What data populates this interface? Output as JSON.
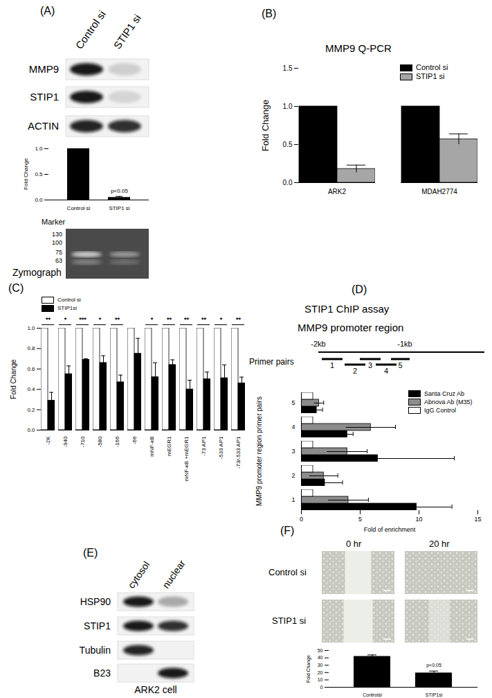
{
  "figure": {
    "A": {
      "label": "(A)",
      "blot": {
        "lanes": [
          "Control si",
          "STIP1 si"
        ],
        "rows": [
          "MMP9",
          "STIP1",
          "ACTIN"
        ]
      },
      "zymograph": {
        "title": "Zymograph",
        "marker_title": "Marker",
        "markers": [
          130,
          100,
          75,
          63
        ]
      }
    },
    "B": {
      "label": "(B)",
      "title": "MMP9 Q-PCR"
    },
    "C": {
      "label": "(C)"
    },
    "D": {
      "label": "(D)",
      "title": "STIP1 ChIP assay",
      "subtitle": "MMP9 promoter region",
      "diagram": {
        "start": "-2kb",
        "end": "-1kb",
        "primer_title": "Primer pairs"
      }
    },
    "E": {
      "label": "(E)",
      "blot": {
        "lanes": [
          "cytosol",
          "nuclear"
        ],
        "rows": [
          "HSP90",
          "STIP1",
          "Tubulin",
          "B23"
        ]
      },
      "caption": "ARK2 cell"
    },
    "F": {
      "label": "(F)",
      "columns": [
        "0 hr",
        "20 hr"
      ],
      "rows": [
        "Control si",
        "STIP1 si"
      ]
    }
  },
  "chart_data": [
    {
      "type": "bar",
      "categories": [
        "Control si",
        "STIP1 si"
      ],
      "values": [
        1.0,
        0.05
      ],
      "errors": [
        0,
        0.02
      ],
      "color": "#000000",
      "y_label": "Fold Change",
      "ylim": [
        0,
        1
      ],
      "yticks": [
        {
          "value": 0,
          "label": "0.0"
        },
        0.5,
        {
          "value": 1,
          "label": "1.0"
        }
      ],
      "annotations": [
        {
          "category": "STIP1 si",
          "text": "p<0.05"
        }
      ]
    },
    {
      "type": "bar",
      "categories": [
        "ARK2",
        "MDAH2774"
      ],
      "series": [
        {
          "name": "Control si",
          "color": "#000000",
          "values": [
            1.0,
            1.0
          ],
          "errors": [
            0,
            0
          ]
        },
        {
          "name": "STIP1 si",
          "color": "#a6a6a6",
          "values": [
            0.18,
            0.57
          ],
          "errors": [
            0.05,
            0.07
          ]
        }
      ],
      "y_label": "Fold Change",
      "ylim": [
        0,
        1.5
      ],
      "yticks": [
        {
          "value": 0,
          "label": "0.0"
        },
        0.5,
        {
          "value": 1,
          "label": "1.0"
        },
        1.5
      ],
      "legend": "top-right"
    },
    {
      "type": "bar",
      "categories": [
        "-2K",
        "-940",
        "-710",
        "-580",
        "-166",
        "-66",
        "mNF-κB",
        "mEGR1",
        "mNF-κB +mEGR1",
        "-73 AP1",
        "-533 AP1",
        "-73/-533 AP1"
      ],
      "series": [
        {
          "name": "Control si",
          "color": "#ffffff",
          "values": [
            1,
            1,
            1,
            1,
            1,
            1,
            1,
            1,
            1,
            1,
            1,
            1
          ],
          "errors": [
            0,
            0,
            0,
            0,
            0,
            0,
            0,
            0,
            0,
            0,
            0,
            0
          ]
        },
        {
          "name": "STIP1si",
          "color": "#000000",
          "values": [
            0.29,
            0.55,
            0.69,
            0.66,
            0.47,
            0.75,
            0.52,
            0.64,
            0.4,
            0.5,
            0.51,
            0.46
          ],
          "errors": [
            0.08,
            0.08,
            0.01,
            0.07,
            0.07,
            0.15,
            0.14,
            0.05,
            0.09,
            0.07,
            0.13,
            0.06
          ]
        }
      ],
      "y_label": "Fold Change",
      "ylim": [
        0,
        1
      ],
      "yticks": [
        {
          "value": 0,
          "label": "0.0"
        },
        0.2,
        0.4,
        0.6,
        0.8,
        {
          "value": 1,
          "label": "1.0"
        }
      ],
      "legend": "top-left",
      "annotations": [
        {
          "category": "-2K",
          "text": "**"
        },
        {
          "category": "-940",
          "text": "*"
        },
        {
          "category": "-710",
          "text": "***"
        },
        {
          "category": "-580",
          "text": "*"
        },
        {
          "category": "-166",
          "text": "**"
        },
        {
          "category": "mNF-κB",
          "text": "*"
        },
        {
          "category": "mEGR1",
          "text": "**"
        },
        {
          "category": "mNF-κB +mEGR1",
          "text": "**"
        },
        {
          "category": "-73 AP1",
          "text": "**"
        },
        {
          "category": "-533 AP1",
          "text": "*"
        },
        {
          "category": "-73/-533 AP1",
          "text": "**"
        }
      ]
    },
    {
      "type": "bar",
      "orientation": "horizontal",
      "categories": [
        "1",
        "2",
        "3",
        "4",
        "5"
      ],
      "series": [
        {
          "name": "Santa Cruz Ab",
          "color": "#000000",
          "values": [
            9.8,
            2.0,
            6.5,
            3.9,
            1.3
          ],
          "errors": [
            3.0,
            1.5,
            6.5,
            0.5,
            0.5
          ]
        },
        {
          "name": "Abnova Ab (M35)",
          "color": "#8c8c8c",
          "values": [
            4.0,
            1.9,
            3.9,
            5.9,
            1.5
          ],
          "errors": [
            1.7,
            1.2,
            1.7,
            2.1,
            0.4
          ]
        },
        {
          "name": "IgG Control",
          "color": "#ffffff",
          "values": [
            1.0,
            1.0,
            1.0,
            1.0,
            1.0
          ],
          "errors": [
            0,
            0,
            0,
            0,
            0
          ]
        }
      ],
      "x_label": "Fold of enrichment",
      "y_label": "MMP9 promoter region primer pairs",
      "xlim": [
        0,
        15
      ],
      "xticks": [
        0,
        5,
        10,
        15
      ],
      "legend": "top-right"
    },
    {
      "type": "bar",
      "categories": [
        "Controlsi",
        "STIP1si"
      ],
      "values": [
        42,
        19.5
      ],
      "errors": [
        2,
        2.5
      ],
      "color": "#000000",
      "y_label": "Fold Change",
      "ylim": [
        0,
        50
      ],
      "yticks": [
        0,
        10,
        20,
        30,
        40,
        50
      ],
      "annotations": [
        {
          "category": "STIP1si",
          "text": "p<0.05"
        }
      ]
    }
  ]
}
